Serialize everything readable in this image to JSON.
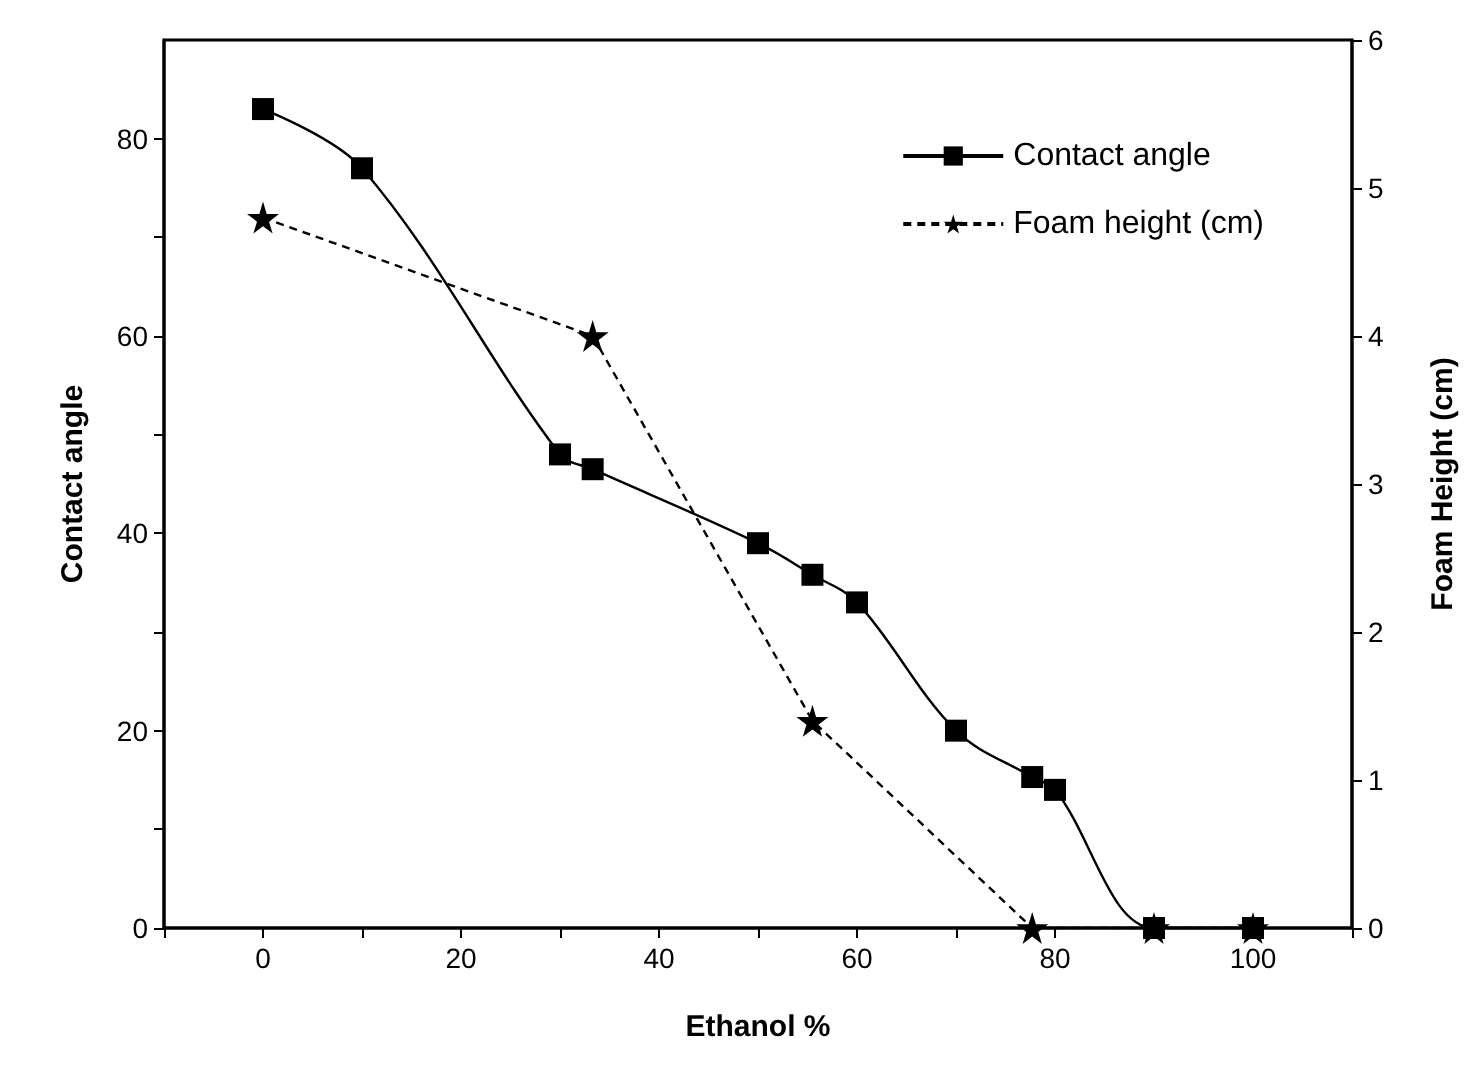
{
  "chart_data": {
    "type": "line",
    "xlabel": "Ethanol %",
    "ylabel": "Contact angle",
    "y2label": "Foam Height (cm)",
    "x": [
      0,
      10,
      30,
      33.3,
      50,
      55.5,
      60,
      70,
      77.7,
      80,
      90,
      100
    ],
    "series": [
      {
        "name": "Contact angle",
        "color": "#000000",
        "marker": "square",
        "line_style": "solid",
        "values": [
          83,
          77,
          48,
          46.5,
          39,
          35.8,
          33,
          20,
          15.3,
          14,
          0,
          0
        ]
      },
      {
        "name": "Foam height (cm)",
        "color": "#000000",
        "marker": "star",
        "line_style": "dashed",
        "axis": "y2",
        "x": [
          0,
          33.3,
          55.5,
          77.7,
          90,
          100
        ],
        "values": [
          4.8,
          4.0,
          1.4,
          0,
          0,
          0
        ]
      }
    ],
    "xlim": [
      -10,
      110
    ],
    "xticks": [
      {
        "value": -10,
        "label": null
      },
      0,
      {
        "value": 10,
        "label": null
      },
      20,
      {
        "value": 30,
        "label": null
      },
      40,
      {
        "value": 50,
        "label": null
      },
      60,
      {
        "value": 70,
        "label": null
      },
      80,
      {
        "value": 90,
        "label": null
      },
      100,
      {
        "value": 110,
        "label": null
      }
    ],
    "ylim": [
      0,
      90
    ],
    "yticks": [
      0,
      {
        "value": 10,
        "label": null
      },
      20,
      {
        "value": 30,
        "label": null
      },
      40,
      {
        "value": 50,
        "label": null
      },
      60,
      {
        "value": 70,
        "label": null
      },
      80
    ],
    "y2lim": [
      0,
      6
    ],
    "y2ticks": [
      0,
      1,
      2,
      3,
      4,
      5,
      6
    ],
    "grid": false,
    "legend": "top right"
  }
}
